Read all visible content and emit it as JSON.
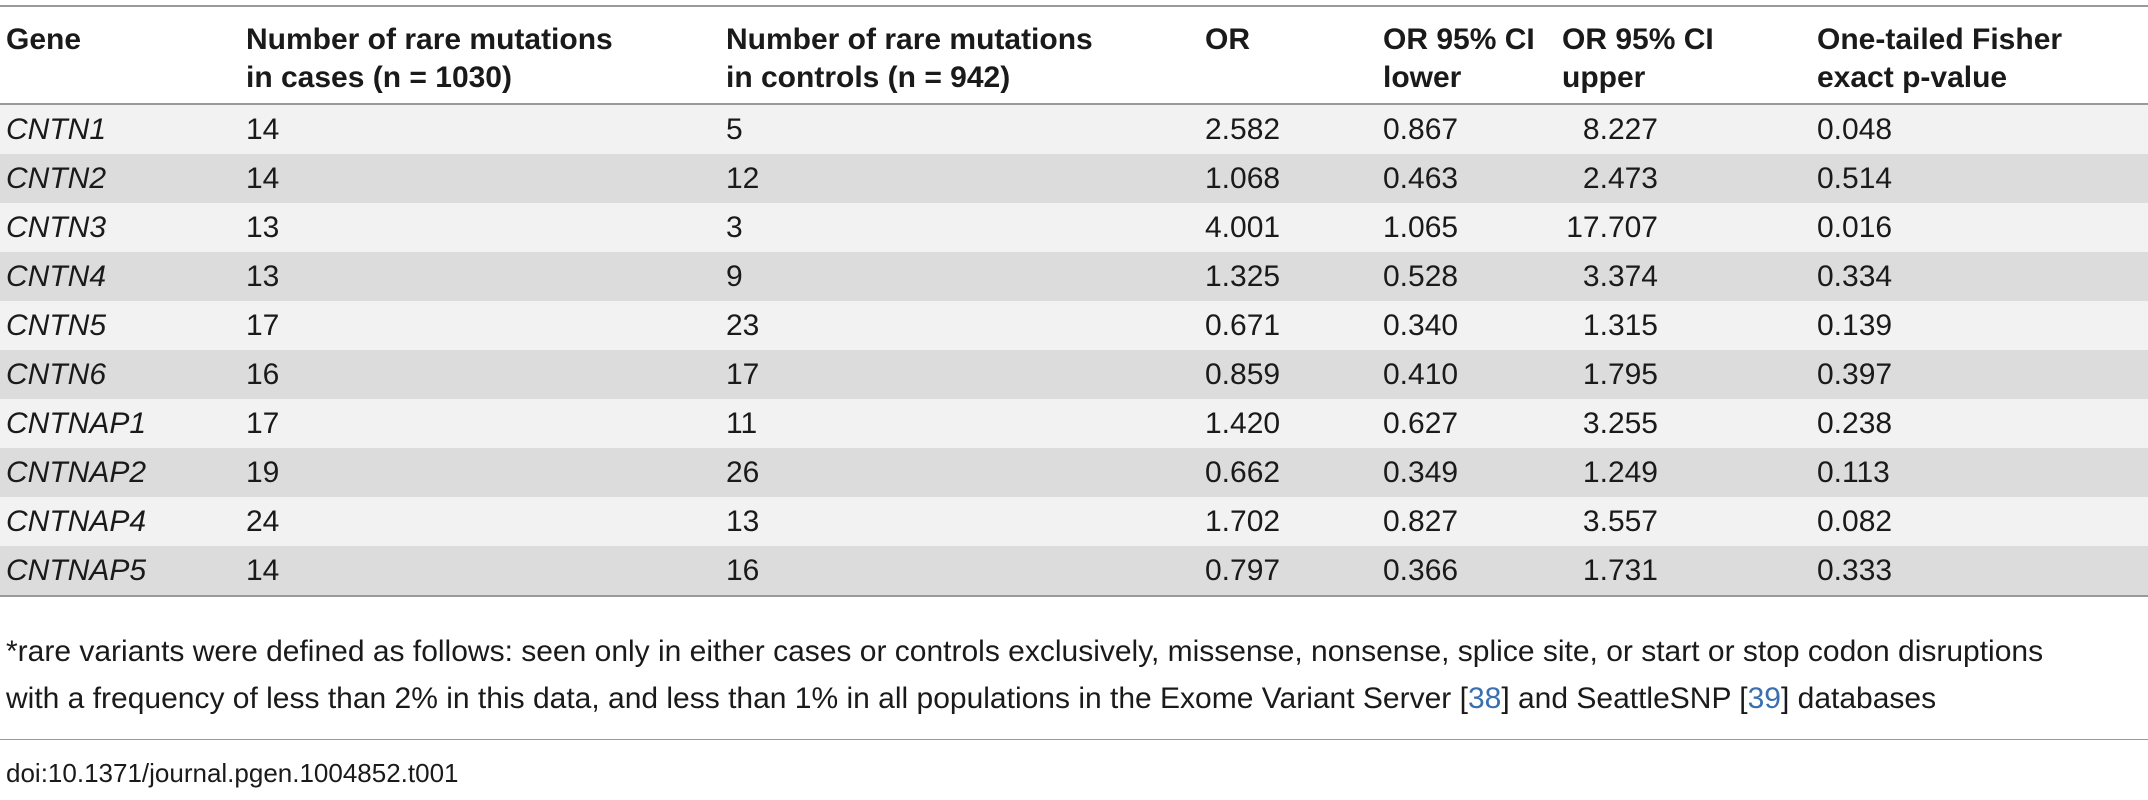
{
  "table": {
    "headers": {
      "gene": "Gene",
      "cases_line1": "Number of rare mutations",
      "cases_line2": "in cases (n = 1030)",
      "controls_line1": "Number of rare mutations",
      "controls_line2": "in controls (n = 942)",
      "or": "OR",
      "ci_lower_line1": "OR 95% CI",
      "ci_lower_line2": "lower",
      "ci_upper_line1": "OR 95% CI",
      "ci_upper_line2": "upper",
      "pvalue_line1": "One-tailed Fisher",
      "pvalue_line2": "exact p-value"
    },
    "rows": [
      {
        "gene": "CNTN1",
        "cases": "14",
        "controls": "5",
        "or": "2.582",
        "ci_lower": "0.867",
        "ci_upper": "8.227",
        "p": "0.048"
      },
      {
        "gene": "CNTN2",
        "cases": "14",
        "controls": "12",
        "or": "1.068",
        "ci_lower": "0.463",
        "ci_upper": "2.473",
        "p": "0.514"
      },
      {
        "gene": "CNTN3",
        "cases": "13",
        "controls": "3",
        "or": "4.001",
        "ci_lower": "1.065",
        "ci_upper": "17.707",
        "p": "0.016"
      },
      {
        "gene": "CNTN4",
        "cases": "13",
        "controls": "9",
        "or": "1.325",
        "ci_lower": "0.528",
        "ci_upper": "3.374",
        "p": "0.334"
      },
      {
        "gene": "CNTN5",
        "cases": "17",
        "controls": "23",
        "or": "0.671",
        "ci_lower": "0.340",
        "ci_upper": "1.315",
        "p": "0.139"
      },
      {
        "gene": "CNTN6",
        "cases": "16",
        "controls": "17",
        "or": "0.859",
        "ci_lower": "0.410",
        "ci_upper": "1.795",
        "p": "0.397"
      },
      {
        "gene": "CNTNAP1",
        "cases": "17",
        "controls": "11",
        "or": "1.420",
        "ci_lower": "0.627",
        "ci_upper": "3.255",
        "p": "0.238"
      },
      {
        "gene": "CNTNAP2",
        "cases": "19",
        "controls": "26",
        "or": "0.662",
        "ci_lower": "0.349",
        "ci_upper": "1.249",
        "p": "0.113"
      },
      {
        "gene": "CNTNAP4",
        "cases": "24",
        "controls": "13",
        "or": "1.702",
        "ci_lower": "0.827",
        "ci_upper": "3.557",
        "p": "0.082"
      },
      {
        "gene": "CNTNAP5",
        "cases": "14",
        "controls": "16",
        "or": "0.797",
        "ci_lower": "0.366",
        "ci_upper": "1.731",
        "p": "0.333"
      }
    ]
  },
  "footnote": {
    "line1": "*rare variants were defined as follows: seen only in either cases or controls exclusively, missense, nonsense, splice site, or start or stop codon disruptions",
    "line2_a": "with a frequency of less than 2% in this data, and less than 1% in all populations in the Exome Variant Server [",
    "ref1": "38",
    "line2_b": "] and SeattleSNP [",
    "ref2": "39",
    "line2_c": "] databases"
  },
  "doi": "doi:10.1371/journal.pgen.1004852.t001",
  "colors": {
    "row_light": "#f2f2f2",
    "row_dark": "#dcdcdc",
    "rule": "#9a9a9a",
    "link": "#3a6fb0"
  }
}
